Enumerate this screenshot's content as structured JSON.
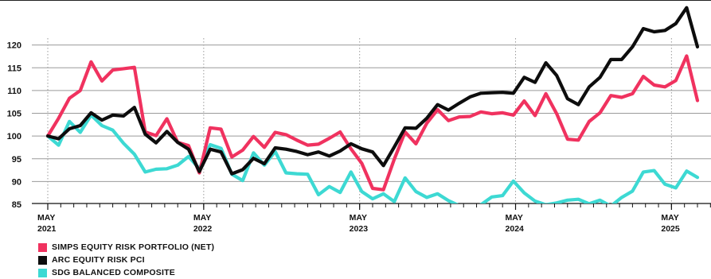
{
  "chart_data": {
    "type": "line",
    "ylim": [
      85,
      125
    ],
    "yticks": [
      "120",
      "115",
      "110",
      "105",
      "100",
      "95",
      "90",
      "85"
    ],
    "ytick_values": [
      120,
      115,
      110,
      105,
      100,
      95,
      90,
      85
    ],
    "xlim": [
      0,
      50
    ],
    "xticks": [
      {
        "x": 0,
        "month": "MAY",
        "year": "2021"
      },
      {
        "x": 12,
        "month": "MAY",
        "year": "2022"
      },
      {
        "x": 24,
        "month": "MAY",
        "year": "2023"
      },
      {
        "x": 36,
        "month": "MAY",
        "year": "2024"
      },
      {
        "x": 48,
        "month": "MAY",
        "year": "2025"
      }
    ],
    "grid": true,
    "legend_position": "bottom-left",
    "series": [
      {
        "name": "SIMPS EQUITY RISK PORTFOLIO (NET)",
        "color": "#f0325f",
        "values": [
          100,
          103.9,
          108.3,
          110,
          116.3,
          112.1,
          114.5,
          114.8,
          115.1,
          100.9,
          100.1,
          103.8,
          98.6,
          97.9,
          91.9,
          101.8,
          101.5,
          95.4,
          96.9,
          99.9,
          97.5,
          100.8,
          100.3,
          99.1,
          98,
          98.2,
          99.5,
          100.9,
          97.2,
          94,
          88.5,
          88.2,
          94.9,
          100.9,
          98.3,
          102.8,
          105.8,
          103.4,
          104.2,
          104.3,
          105.3,
          104.9,
          105.1,
          104.6,
          107.7,
          104.5,
          109.3,
          104.9,
          99.3,
          99.1,
          103.2,
          105.1,
          108.9,
          108.5,
          109.3,
          113.1,
          111.2,
          110.8,
          112.2,
          117.6,
          107.8
        ]
      },
      {
        "name": "ARC EQUITY RISK PCI",
        "color": "#0d0d0d",
        "values": [
          100,
          99.4,
          101.6,
          102.3,
          105.1,
          103.5,
          104.6,
          104.4,
          106.3,
          100.4,
          98.5,
          101,
          98.6,
          97.1,
          92.2,
          97.1,
          96.5,
          91.7,
          92.6,
          95.1,
          93.9,
          97.4,
          97.1,
          96.6,
          95.9,
          96.5,
          95.6,
          96.7,
          98.3,
          97.2,
          96.5,
          93.5,
          97.6,
          101.8,
          101.7,
          103.9,
          106.9,
          105.7,
          107.2,
          108.6,
          109.4,
          109.5,
          109.6,
          109.4,
          112.9,
          111.8,
          116.1,
          113.3,
          108.2,
          106.9,
          110.8,
          112.9,
          116.8,
          116.8,
          119.6,
          123.6,
          122.9,
          123.2,
          124.7,
          128.2,
          119.6
        ]
      },
      {
        "name": "SDG BALANCED COMPOSITE",
        "color": "#3dd9d3",
        "values": [
          100,
          98,
          103.2,
          100.8,
          104.6,
          102.3,
          101.3,
          98.4,
          96,
          92.1,
          92.7,
          92.8,
          93.6,
          95.5,
          92.8,
          98.1,
          97.3,
          91.6,
          90.2,
          96.3,
          93.6,
          96.6,
          91.9,
          91.7,
          91.6,
          87.1,
          88.9,
          87.6,
          92.1,
          87.8,
          86.2,
          87.3,
          85.6,
          90.8,
          87.8,
          86.5,
          87.3,
          85.8,
          84.7,
          84.3,
          84.9,
          86.6,
          86.9,
          90.1,
          87.5,
          85.7,
          84.9,
          85.3,
          85.9,
          86.1,
          85.1,
          85.9,
          84.6,
          86.5,
          87.9,
          92.1,
          92.4,
          89.4,
          88.6,
          92.3,
          90.9
        ]
      }
    ]
  }
}
